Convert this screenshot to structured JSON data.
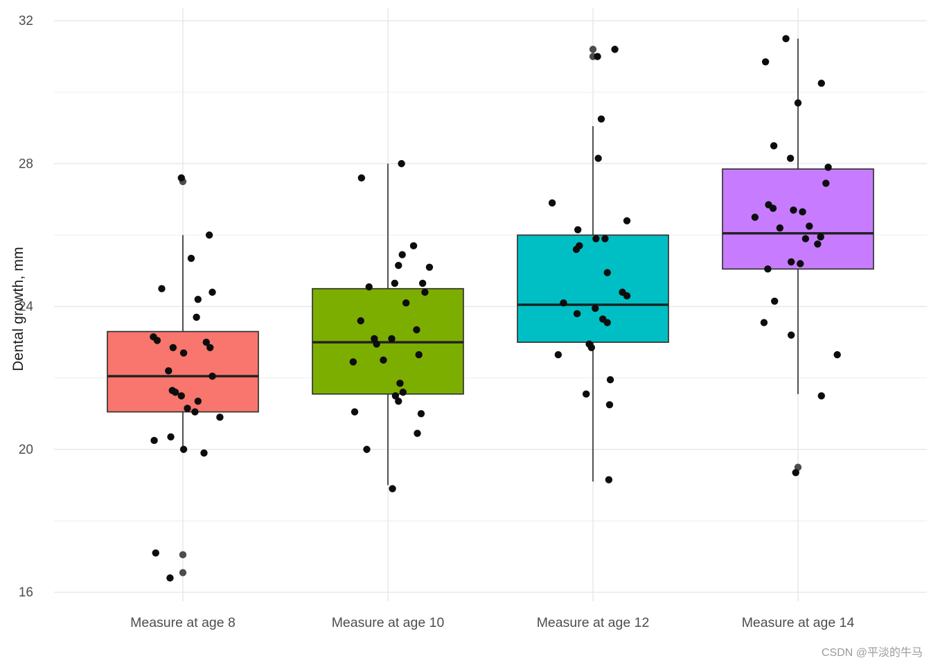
{
  "watermark": "CSDN @平淡的牛马",
  "chart_data": {
    "type": "boxplot",
    "title": "",
    "xlabel": "",
    "ylabel": "Dental growth, mm",
    "ylim": [
      16,
      32
    ],
    "yticks": [
      16,
      20,
      24,
      28,
      32
    ],
    "minor_yticks": [
      18,
      22,
      26,
      30
    ],
    "grid": true,
    "legend": "none",
    "categories": [
      "Measure at age 8",
      "Measure at age 10",
      "Measure at age 12",
      "Measure at age 14"
    ],
    "groups": [
      {
        "label": "Measure at age 8",
        "fill": "#F8766D",
        "stats": {
          "whisker_low": 20.0,
          "q1": 21.05,
          "median": 22.05,
          "q3": 23.3,
          "whisker_high": 26.0
        },
        "outliers": [
          27.5,
          17.05,
          16.55
        ],
        "points": [
          [
            -0.28,
            24.5
          ],
          [
            -0.02,
            27.6
          ],
          [
            0.11,
            25.35
          ],
          [
            0.35,
            26.0
          ],
          [
            0.2,
            24.2
          ],
          [
            0.39,
            24.4
          ],
          [
            0.18,
            23.7
          ],
          [
            -0.39,
            23.15
          ],
          [
            -0.34,
            23.05
          ],
          [
            -0.13,
            22.85
          ],
          [
            0.01,
            22.7
          ],
          [
            0.31,
            23.0
          ],
          [
            0.36,
            22.85
          ],
          [
            -0.19,
            22.2
          ],
          [
            0.39,
            22.05
          ],
          [
            -0.1,
            21.6
          ],
          [
            -0.02,
            21.5
          ],
          [
            0.2,
            21.35
          ],
          [
            -0.14,
            21.65
          ],
          [
            0.16,
            21.05
          ],
          [
            0.06,
            21.15
          ],
          [
            0.49,
            20.9
          ],
          [
            -0.38,
            20.25
          ],
          [
            -0.16,
            20.35
          ],
          [
            0.28,
            19.9
          ],
          [
            0.01,
            20.0
          ],
          [
            -0.36,
            17.1
          ],
          [
            -0.17,
            16.4
          ]
        ]
      },
      {
        "label": "Measure at age 10",
        "fill": "#7CAE00",
        "stats": {
          "whisker_low": 19.0,
          "q1": 21.55,
          "median": 23.0,
          "q3": 24.5,
          "whisker_high": 28.0
        },
        "outliers": [],
        "points": [
          [
            -0.35,
            27.6
          ],
          [
            0.18,
            28.0
          ],
          [
            0.34,
            25.7
          ],
          [
            0.19,
            25.45
          ],
          [
            0.14,
            25.15
          ],
          [
            0.55,
            25.1
          ],
          [
            -0.25,
            24.55
          ],
          [
            0.09,
            24.65
          ],
          [
            0.46,
            24.65
          ],
          [
            0.24,
            24.1
          ],
          [
            0.49,
            24.4
          ],
          [
            0.38,
            23.35
          ],
          [
            -0.36,
            23.6
          ],
          [
            -0.18,
            23.1
          ],
          [
            -0.15,
            22.95
          ],
          [
            0.05,
            23.1
          ],
          [
            -0.46,
            22.45
          ],
          [
            -0.06,
            22.5
          ],
          [
            0.41,
            22.65
          ],
          [
            0.16,
            21.85
          ],
          [
            0.2,
            21.6
          ],
          [
            0.1,
            21.5
          ],
          [
            0.14,
            21.35
          ],
          [
            0.44,
            21.0
          ],
          [
            -0.44,
            21.05
          ],
          [
            0.39,
            20.45
          ],
          [
            -0.28,
            20.0
          ],
          [
            0.06,
            18.9
          ]
        ]
      },
      {
        "label": "Measure at age 12",
        "fill": "#00BFC4",
        "stats": {
          "whisker_low": 19.1,
          "q1": 23.0,
          "median": 24.05,
          "q3": 26.0,
          "whisker_high": 29.05
        },
        "outliers": [
          31.2,
          31.0
        ],
        "points": [
          [
            0.29,
            31.2
          ],
          [
            0.06,
            31.0
          ],
          [
            0.11,
            29.25
          ],
          [
            0.07,
            28.15
          ],
          [
            -0.54,
            26.9
          ],
          [
            0.45,
            26.4
          ],
          [
            -0.2,
            26.15
          ],
          [
            -0.18,
            25.7
          ],
          [
            0.04,
            25.9
          ],
          [
            0.16,
            25.9
          ],
          [
            -0.22,
            25.6
          ],
          [
            0.19,
            24.95
          ],
          [
            0.39,
            24.4
          ],
          [
            0.45,
            24.3
          ],
          [
            -0.39,
            24.1
          ],
          [
            -0.21,
            23.8
          ],
          [
            0.03,
            23.95
          ],
          [
            0.13,
            23.65
          ],
          [
            0.19,
            23.55
          ],
          [
            -0.46,
            22.65
          ],
          [
            -0.05,
            22.95
          ],
          [
            -0.02,
            22.85
          ],
          [
            0.23,
            21.95
          ],
          [
            -0.09,
            21.55
          ],
          [
            0.22,
            21.25
          ],
          [
            0.21,
            19.15
          ]
        ]
      },
      {
        "label": "Measure at age 14",
        "fill": "#C77CFF",
        "stats": {
          "whisker_low": 21.55,
          "q1": 25.05,
          "median": 26.05,
          "q3": 27.85,
          "whisker_high": 31.5
        },
        "outliers": [
          19.5
        ],
        "points": [
          [
            -0.16,
            31.5
          ],
          [
            -0.43,
            30.85
          ],
          [
            0.31,
            30.25
          ],
          [
            0.0,
            29.7
          ],
          [
            -0.32,
            28.5
          ],
          [
            -0.1,
            28.15
          ],
          [
            0.4,
            27.9
          ],
          [
            0.37,
            27.45
          ],
          [
            -0.39,
            26.85
          ],
          [
            -0.33,
            26.75
          ],
          [
            -0.57,
            26.5
          ],
          [
            -0.06,
            26.7
          ],
          [
            0.06,
            26.65
          ],
          [
            -0.24,
            26.2
          ],
          [
            0.15,
            26.25
          ],
          [
            0.1,
            25.9
          ],
          [
            0.26,
            25.75
          ],
          [
            0.3,
            25.95
          ],
          [
            -0.4,
            25.05
          ],
          [
            -0.09,
            25.25
          ],
          [
            0.03,
            25.2
          ],
          [
            -0.31,
            24.15
          ],
          [
            -0.45,
            23.55
          ],
          [
            -0.09,
            23.2
          ],
          [
            0.52,
            22.65
          ],
          [
            0.31,
            21.5
          ],
          [
            -0.03,
            19.35
          ]
        ]
      }
    ],
    "style": {
      "background": "#FFFFFF",
      "major_grid": "#E8E8E8",
      "minor_grid": "#F3F3F3",
      "box_border": "#333333",
      "median_color": "#1F1F1F",
      "point_color": "#0D0D0D",
      "outlier_color": "#4D4D4D",
      "tick_label_color": "#4D4D4D",
      "axis_title_color": "#1A1A1A",
      "watermark_color": "#9B9B9B",
      "box_fills": [
        "#F8766D",
        "#7CAE00",
        "#00BFC4",
        "#C77CFF"
      ]
    }
  }
}
